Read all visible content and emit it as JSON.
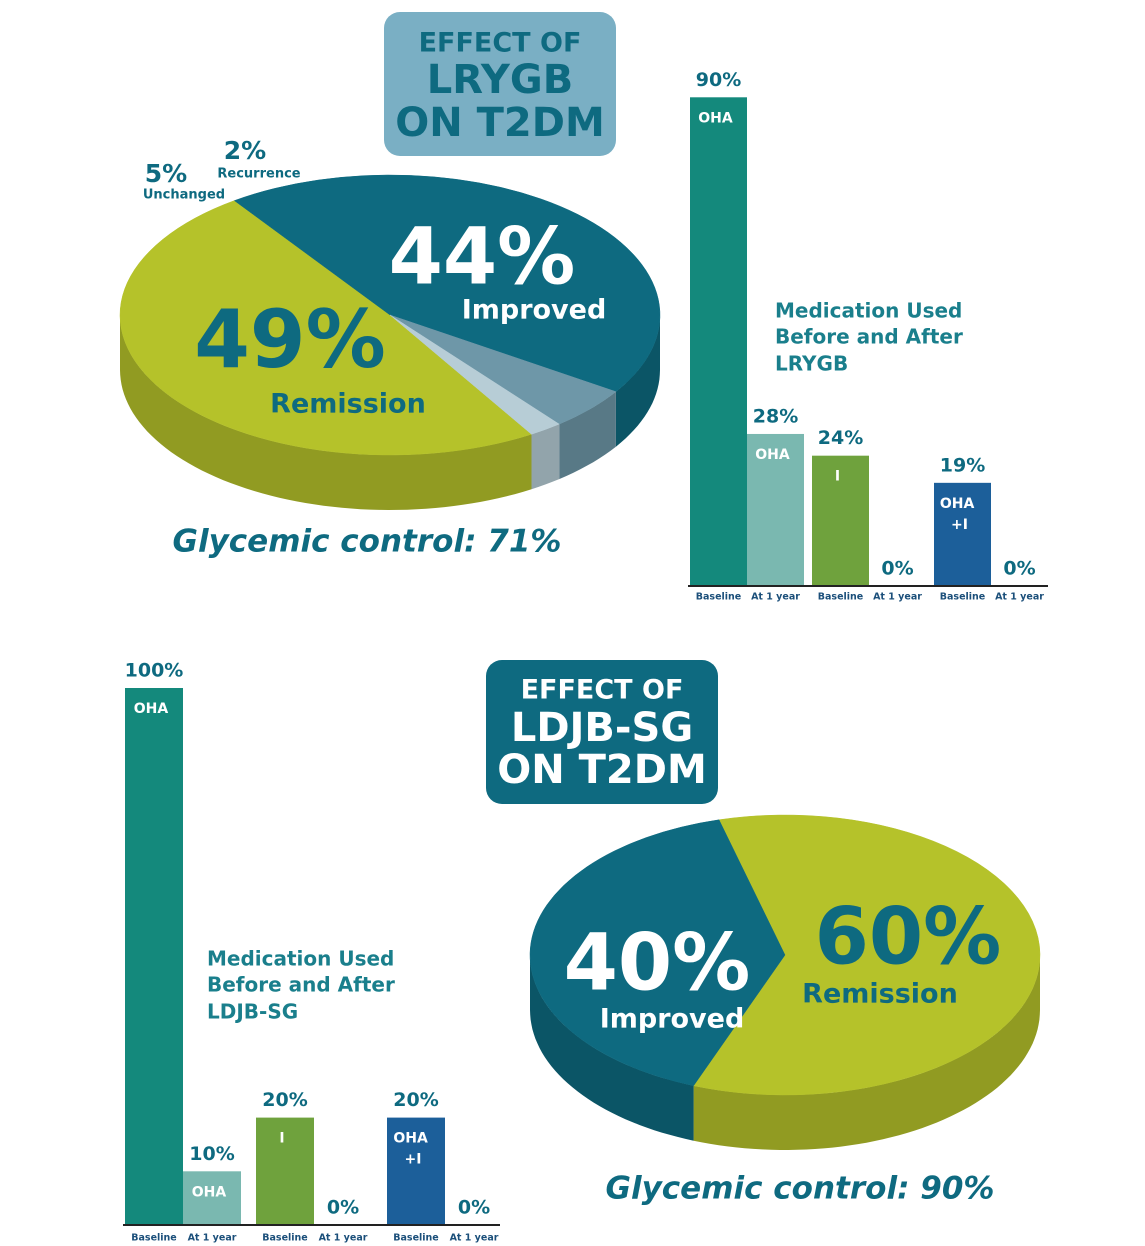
{
  "chart_data": [
    {
      "type": "pie",
      "title_lines": [
        "EFFECT OF",
        "LRYGB",
        "ON T2DM"
      ],
      "categories": [
        "Remission",
        "Improved",
        "Unchanged",
        "Recurrence"
      ],
      "values": [
        49,
        44,
        5,
        2
      ],
      "value_labels": [
        "49%",
        "44%",
        "5%",
        "2%"
      ],
      "colors": [
        "#b5c22a",
        "#0e6a80",
        "#6e97a8",
        "#b7cdd6"
      ],
      "annotation": "Glycemic control: 71%"
    },
    {
      "type": "bar",
      "title_lines": [
        "Medication Used",
        "Before and After",
        "LRYGB"
      ],
      "categories": [
        "Baseline",
        "At 1 year"
      ],
      "series": [
        {
          "name": "OHA",
          "colors": [
            "#14897c",
            "#7ab8b0"
          ],
          "values": [
            90,
            28
          ],
          "value_labels": [
            "90%",
            "28%"
          ]
        },
        {
          "name": "I",
          "colors": [
            "#6fa23d",
            "#6fa23d"
          ],
          "values": [
            24,
            0
          ],
          "value_labels": [
            "24%",
            "0%"
          ]
        },
        {
          "name": "OHA +I",
          "colors": [
            "#1c5f9a",
            "#1c5f9a"
          ],
          "values": [
            19,
            0
          ],
          "value_labels": [
            "19%",
            "0%"
          ]
        }
      ],
      "ylim": [
        0,
        100
      ]
    },
    {
      "type": "pie",
      "title_lines": [
        "EFFECT OF",
        "LDJB-SG",
        "ON T2DM"
      ],
      "categories": [
        "Remission",
        "Improved"
      ],
      "values": [
        60,
        40
      ],
      "value_labels": [
        "60%",
        "40%"
      ],
      "colors": [
        "#b5c22a",
        "#0e6a80"
      ],
      "annotation": "Glycemic control: 90%"
    },
    {
      "type": "bar",
      "title_lines": [
        "Medication Used",
        "Before and After",
        "LDJB-SG"
      ],
      "categories": [
        "Baseline",
        "At 1 year"
      ],
      "series": [
        {
          "name": "OHA",
          "colors": [
            "#14897c",
            "#7ab8b0"
          ],
          "values": [
            100,
            10
          ],
          "value_labels": [
            "100%",
            "10%"
          ]
        },
        {
          "name": "I",
          "colors": [
            "#6fa23d",
            "#6fa23d"
          ],
          "values": [
            20,
            0
          ],
          "value_labels": [
            "20%",
            "0%"
          ]
        },
        {
          "name": "OHA +I",
          "colors": [
            "#1c5f9a",
            "#1c5f9a"
          ],
          "values": [
            20,
            0
          ],
          "value_labels": [
            "20%",
            "0%"
          ]
        }
      ],
      "ylim": [
        0,
        100
      ]
    }
  ]
}
